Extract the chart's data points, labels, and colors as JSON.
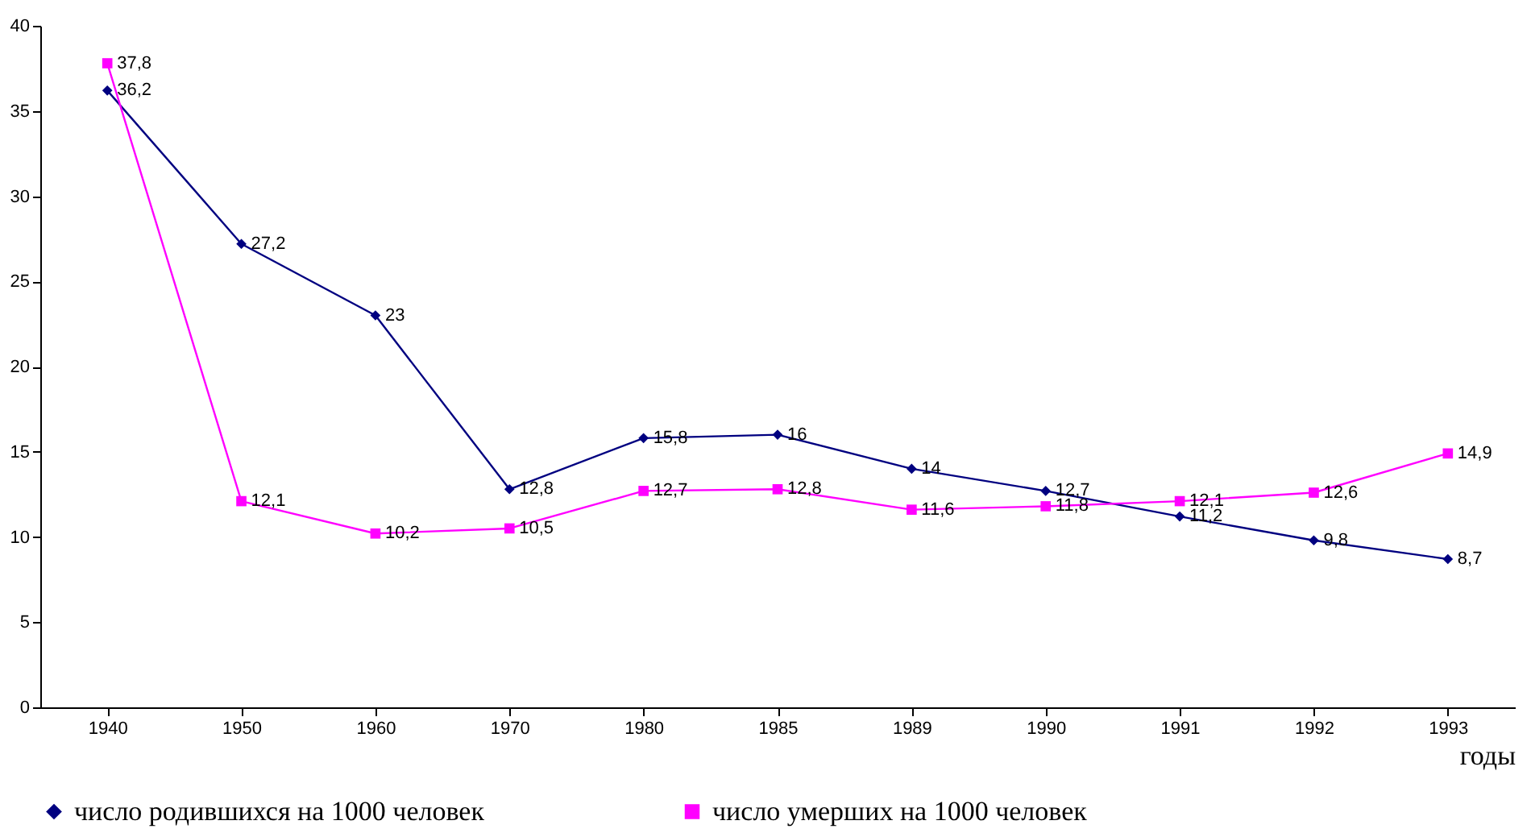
{
  "chart_data": {
    "type": "line",
    "xlabel": "годы",
    "categories": [
      "1940",
      "1950",
      "1960",
      "1970",
      "1980",
      "1985",
      "1989",
      "1990",
      "1991",
      "1992",
      "1993"
    ],
    "series": [
      {
        "name": "число родившихся на 1000 человек",
        "color": "#000080",
        "marker": "diamond",
        "values": [
          36.2,
          27.2,
          23,
          12.8,
          15.8,
          16,
          14,
          12.7,
          11.2,
          9.8,
          8.7
        ],
        "value_labels": [
          "36,2",
          "27,2",
          "23",
          "12,8",
          "15,8",
          "16",
          "14",
          "12,7",
          "11,2",
          "9,8",
          "8,7"
        ]
      },
      {
        "name": "число умерших на 1000 человек",
        "color": "#ff00ff",
        "marker": "square",
        "values": [
          37.8,
          12.1,
          10.2,
          10.5,
          12.7,
          12.8,
          11.6,
          11.8,
          12.1,
          12.6,
          14.9
        ],
        "value_labels": [
          "37,8",
          "12,1",
          "10,2",
          "10,5",
          "12,7",
          "12,8",
          "11,6",
          "11,8",
          "12,1",
          "12,6",
          "14,9"
        ]
      }
    ],
    "ylim": [
      0,
      40
    ],
    "yticks": [
      0,
      5,
      10,
      15,
      20,
      25,
      30,
      35,
      40
    ],
    "grid": false,
    "legend": "bottom",
    "line_style": "solid"
  }
}
